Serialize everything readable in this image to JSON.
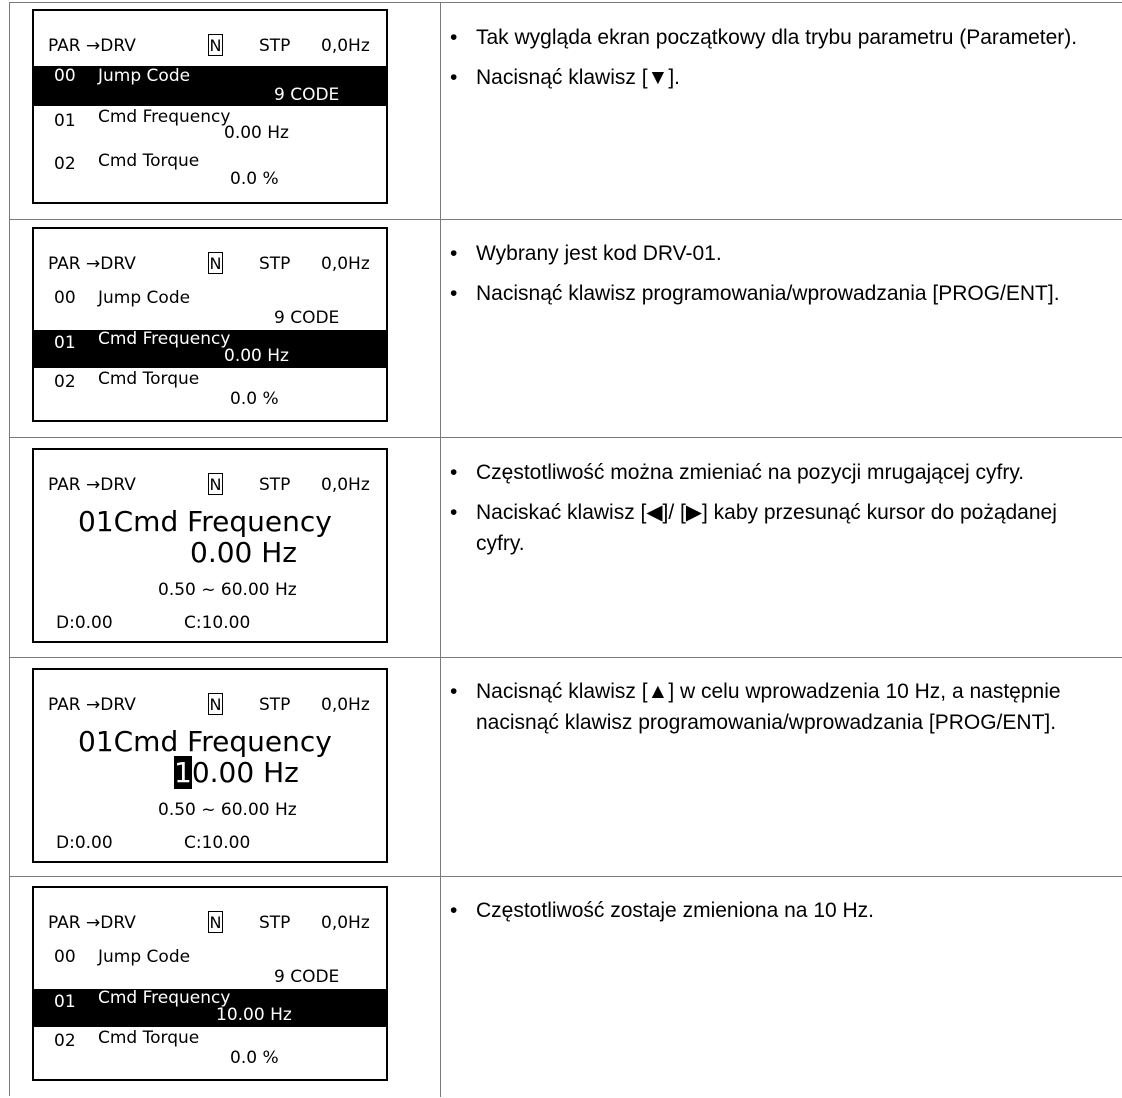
{
  "status_bar": {
    "path": "PAR →DRV",
    "mode": "N",
    "state": "STP",
    "freq": "0,0Hz"
  },
  "step1": {
    "rows": [
      {
        "code": "00",
        "name": "Jump Code",
        "value": "9 CODE"
      },
      {
        "code": "01",
        "name": "Cmd Frequency",
        "value": "0.00 Hz"
      },
      {
        "code": "02",
        "name": "Cmd Torque",
        "value": "0.0 %"
      }
    ],
    "bullets": [
      "Tak wygląda ekran początkowy dla trybu parametru (Parameter).",
      "Nacisnąć klawisz [▼]."
    ]
  },
  "step2": {
    "rows": [
      {
        "code": "00",
        "name": "Jump Code",
        "value": "9 CODE"
      },
      {
        "code": "01",
        "name": "Cmd Frequency",
        "value": "0.00 Hz"
      },
      {
        "code": "02",
        "name": "Cmd Torque",
        "value": "0.0 %"
      }
    ],
    "bullets": [
      "Wybrany jest kod DRV-01.",
      "Nacisnąć klawisz programowania/wprowadzania [PROG/ENT]."
    ]
  },
  "step3": {
    "title": "01Cmd Frequency",
    "value": "0.00 Hz",
    "range": "0.50  ~  60.00 Hz",
    "default": "D:0.00",
    "current": "C:10.00",
    "bullets": [
      "Częstotliwość można zmieniać na pozycji mrugającej cyfry.",
      "Naciskać klawisz [◀]/ [▶] kaby przesunąć kursor do pożądanej cyfry."
    ]
  },
  "step4": {
    "title": "01Cmd Frequency",
    "value_cursor": "1",
    "value_rest": "0.00 Hz",
    "range": "0.50  ~  60.00 Hz",
    "default": "D:0.00",
    "current": "C:10.00",
    "bullets": [
      "Nacisnąć klawisz [▲] w celu wprowadzenia 10 Hz, a następnie nacisnąć klawisz programowania/wprowadzania [PROG/ENT]."
    ]
  },
  "step5": {
    "rows": [
      {
        "code": "00",
        "name": "Jump Code",
        "value": "9 CODE"
      },
      {
        "code": "01",
        "name": "Cmd Frequency",
        "value": "10.00 Hz"
      },
      {
        "code": "02",
        "name": "Cmd Torque",
        "value": "0.0 %"
      }
    ],
    "bullets": [
      "Częstotliwość zostaje zmieniona na 10 Hz."
    ]
  }
}
